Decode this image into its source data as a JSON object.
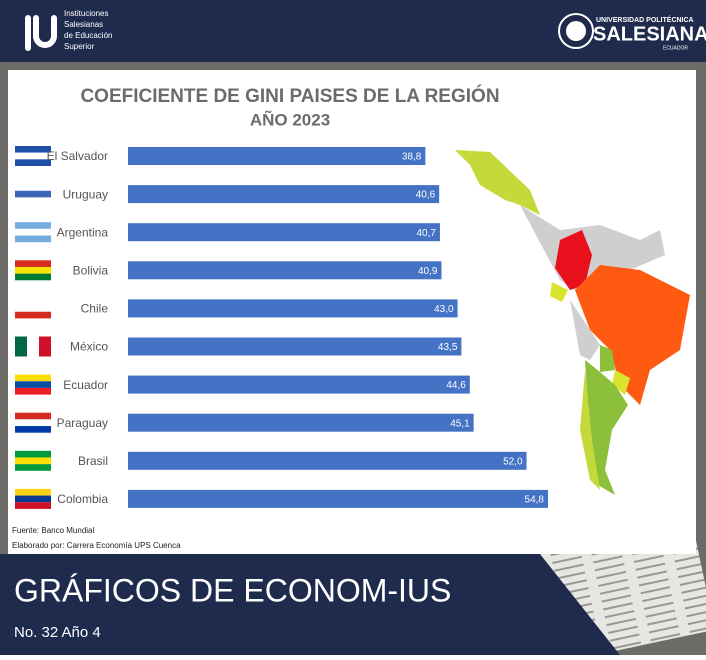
{
  "header": {
    "left_logo": [
      "Instituciones",
      "Salesianas",
      "de Educación",
      "Superior"
    ],
    "right_logo": {
      "top": "UNIVERSIDAD POLITÉCNICA",
      "name": "SALESIANA",
      "country": "ECUADOR"
    }
  },
  "chart_data": {
    "type": "bar",
    "orientation": "horizontal",
    "title": "COEFICIENTE DE GINI PAISES DE LA REGIÓN",
    "subtitle": "AÑO 2023",
    "categories": [
      "El Salvador",
      "Uruguay",
      "Argentina",
      "Bolivia",
      "Chile",
      "México",
      "Ecuador",
      "Paraguay",
      "Brasil",
      "Colombia"
    ],
    "values": [
      38.8,
      40.6,
      40.7,
      40.9,
      43.0,
      43.5,
      44.6,
      45.1,
      52.0,
      54.8
    ],
    "value_labels": [
      "38,8",
      "40,6",
      "40,7",
      "40,9",
      "43,0",
      "43,5",
      "44,6",
      "45,1",
      "52,0",
      "54,8"
    ],
    "color": "#4472c4",
    "source": "Fuente: Banco Mundial",
    "credit": "Elaborado por: Carrera Economía UPS Cuenca"
  },
  "footer": {
    "title": "GRÁFICOS DE ECONOM-IUS",
    "issue": "No. 32 Año 4"
  }
}
